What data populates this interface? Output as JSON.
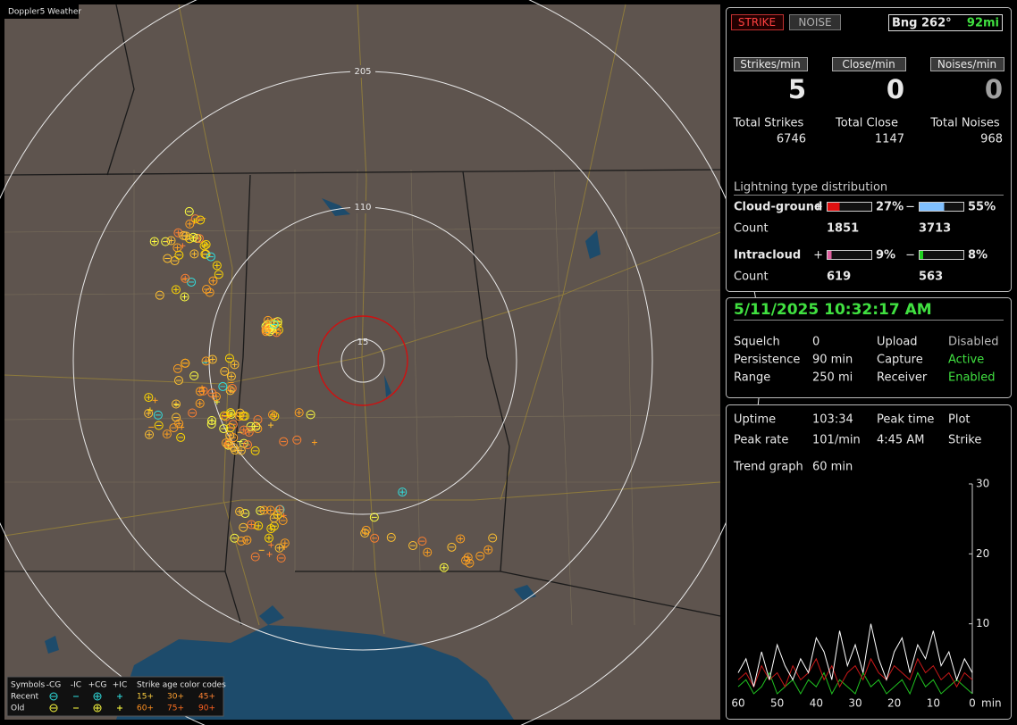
{
  "map": {
    "title": "Doppler5 Weather",
    "range_rings": [
      {
        "label": "205"
      },
      {
        "label": "110"
      },
      {
        "label": "15"
      }
    ],
    "legend": {
      "symbols_label": "Symbols",
      "columns": [
        "-CG",
        "-IC",
        "+CG",
        "+IC"
      ],
      "age_label": "Strike age color codes",
      "rows": [
        {
          "label": "Recent",
          "ages": [
            "15+",
            "30+",
            "45+"
          ]
        },
        {
          "label": "Old",
          "ages": [
            "60+",
            "75+",
            "90+"
          ]
        }
      ]
    }
  },
  "controls": {
    "strike_button": "STRIKE",
    "noise_button": "NOISE",
    "bearing": "Bng 262°",
    "distance": "92mi"
  },
  "rates": [
    {
      "label": "Strikes/min",
      "value": 5,
      "total_label": "Total Strikes",
      "total": 6746
    },
    {
      "label": "Close/min",
      "value": 0,
      "total_label": "Total Close",
      "total": 1147
    },
    {
      "label": "Noises/min",
      "value": 0,
      "total_label": "Total Noises",
      "total": 968
    }
  ],
  "distribution": {
    "title": "Lightning type distribution",
    "count_label": "Count",
    "rows": [
      {
        "label": "Cloud-ground",
        "positive": {
          "sign": "+",
          "percent": 27,
          "percent_label": "27%",
          "count": 1851
        },
        "negative": {
          "sign": "−",
          "percent": 55,
          "percent_label": "55%",
          "count": 3713
        }
      },
      {
        "label": "Intracloud",
        "positive": {
          "sign": "+",
          "percent": 9,
          "percent_label": "9%",
          "count": 619
        },
        "negative": {
          "sign": "−",
          "percent": 8,
          "percent_label": "8%",
          "count": 563
        }
      }
    ]
  },
  "status": {
    "datetime": "5/11/2025 10:32:17 AM",
    "settings": [
      [
        "Squelch",
        "0",
        "Upload",
        "Disabled"
      ],
      [
        "Persistence",
        "90 min",
        "Capture",
        "Active"
      ],
      [
        "Range",
        "250 mi",
        "Receiver",
        "Enabled"
      ]
    ]
  },
  "stats": {
    "rows": [
      [
        "Uptime",
        "103:34",
        "Peak time",
        "Plot"
      ],
      [
        "Peak rate",
        "101/min",
        "4:45 AM",
        "Strike"
      ]
    ],
    "trend_label": "Trend graph",
    "trend_window": "60 min"
  },
  "trend_chart": {
    "type": "line",
    "x": [
      60,
      58,
      56,
      54,
      52,
      50,
      48,
      46,
      44,
      42,
      40,
      38,
      36,
      34,
      32,
      30,
      28,
      26,
      24,
      22,
      20,
      18,
      16,
      14,
      12,
      10,
      8,
      6,
      4,
      2,
      0
    ],
    "xlim": [
      60,
      0
    ],
    "xticks": [
      60,
      50,
      40,
      30,
      20,
      10,
      0
    ],
    "x_unit": "min",
    "ylim": [
      0,
      30
    ],
    "yticks": [
      10,
      20,
      30
    ],
    "series": [
      {
        "color": "#ffffff",
        "values": [
          3,
          5,
          1,
          6,
          2,
          7,
          4,
          2,
          5,
          3,
          8,
          6,
          2,
          9,
          4,
          7,
          3,
          10,
          5,
          2,
          6,
          8,
          3,
          7,
          5,
          9,
          4,
          6,
          2,
          5,
          3
        ]
      },
      {
        "color": "#c81818",
        "values": [
          2,
          3,
          1,
          4,
          2,
          3,
          1,
          4,
          2,
          3,
          5,
          2,
          4,
          1,
          3,
          4,
          2,
          5,
          3,
          2,
          4,
          3,
          2,
          5,
          3,
          4,
          2,
          3,
          1,
          3,
          2
        ]
      },
      {
        "color": "#20c020",
        "values": [
          1,
          2,
          0,
          1,
          3,
          0,
          1,
          2,
          0,
          2,
          1,
          3,
          0,
          2,
          1,
          0,
          3,
          1,
          2,
          0,
          1,
          2,
          0,
          3,
          1,
          2,
          0,
          1,
          2,
          1,
          0
        ]
      }
    ]
  }
}
